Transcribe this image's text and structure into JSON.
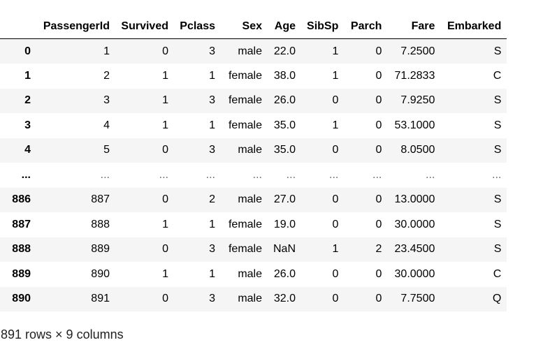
{
  "table": {
    "columns": [
      "",
      "PassengerId",
      "Survived",
      "Pclass",
      "Sex",
      "Age",
      "SibSp",
      "Parch",
      "Fare",
      "Embarked"
    ],
    "rows": [
      {
        "index": "0",
        "cells": [
          "1",
          "0",
          "3",
          "male",
          "22.0",
          "1",
          "0",
          "7.2500",
          "S"
        ]
      },
      {
        "index": "1",
        "cells": [
          "2",
          "1",
          "1",
          "female",
          "38.0",
          "1",
          "0",
          "71.2833",
          "C"
        ]
      },
      {
        "index": "2",
        "cells": [
          "3",
          "1",
          "3",
          "female",
          "26.0",
          "0",
          "0",
          "7.9250",
          "S"
        ]
      },
      {
        "index": "3",
        "cells": [
          "4",
          "1",
          "1",
          "female",
          "35.0",
          "1",
          "0",
          "53.1000",
          "S"
        ]
      },
      {
        "index": "4",
        "cells": [
          "5",
          "0",
          "3",
          "male",
          "35.0",
          "0",
          "0",
          "8.0500",
          "S"
        ]
      },
      {
        "index": "...",
        "cells": [
          "...",
          "...",
          "...",
          "...",
          "...",
          "...",
          "...",
          "...",
          "..."
        ]
      },
      {
        "index": "886",
        "cells": [
          "887",
          "0",
          "2",
          "male",
          "27.0",
          "0",
          "0",
          "13.0000",
          "S"
        ]
      },
      {
        "index": "887",
        "cells": [
          "888",
          "1",
          "1",
          "female",
          "19.0",
          "0",
          "0",
          "30.0000",
          "S"
        ]
      },
      {
        "index": "888",
        "cells": [
          "889",
          "0",
          "3",
          "female",
          "NaN",
          "1",
          "2",
          "23.4500",
          "S"
        ]
      },
      {
        "index": "889",
        "cells": [
          "890",
          "1",
          "1",
          "male",
          "26.0",
          "0",
          "0",
          "30.0000",
          "C"
        ]
      },
      {
        "index": "890",
        "cells": [
          "891",
          "0",
          "3",
          "male",
          "32.0",
          "0",
          "0",
          "7.7500",
          "Q"
        ]
      }
    ]
  },
  "footer": {
    "shape_text": "891 rows × 9 columns"
  },
  "colors": {
    "stripe": "#f5f5f5",
    "header_rule": "#000000"
  }
}
